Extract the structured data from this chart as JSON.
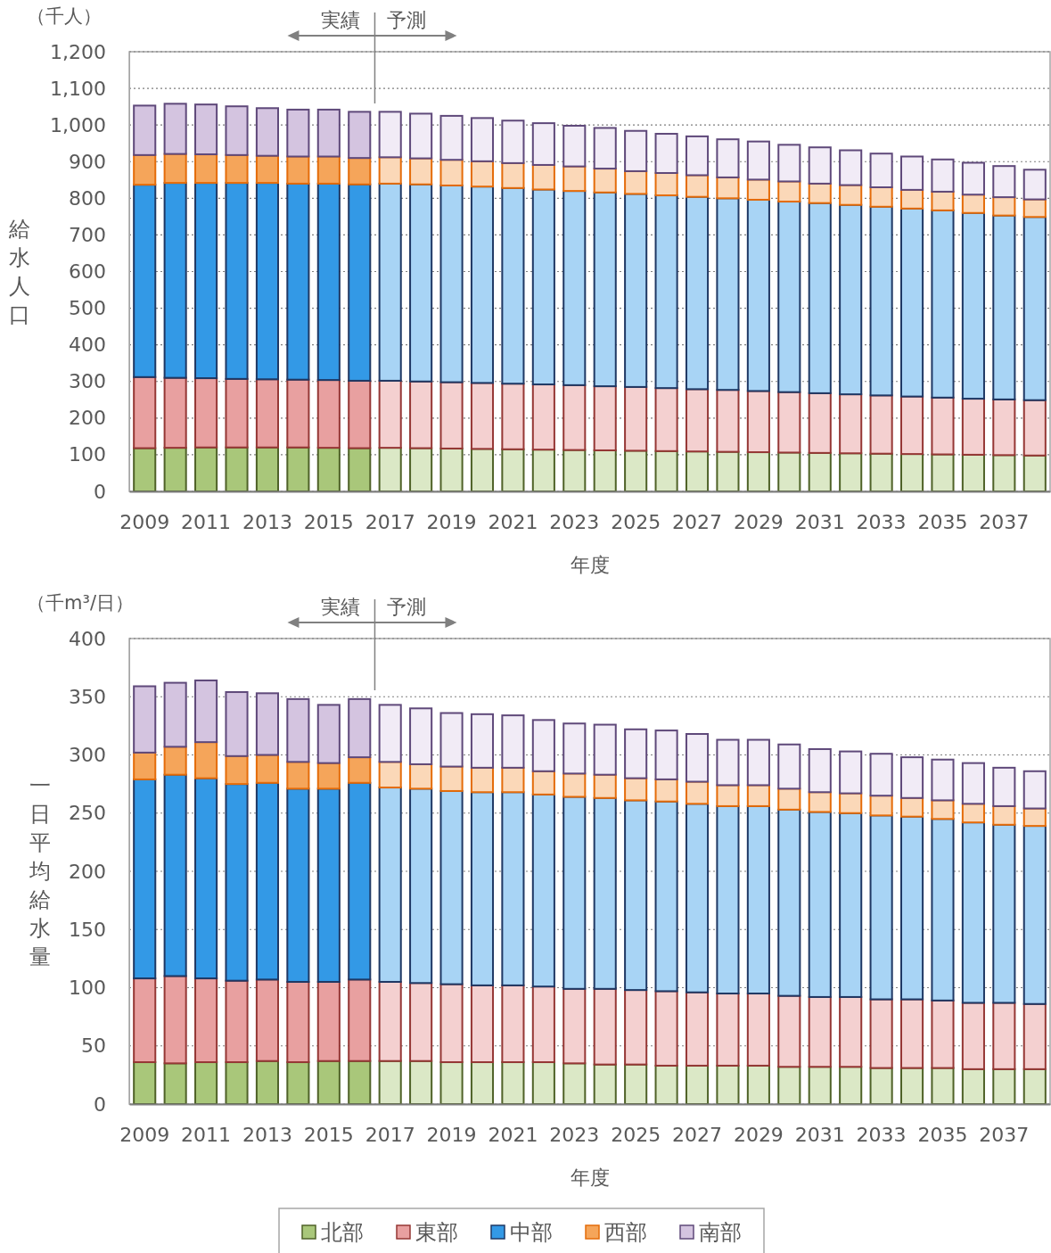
{
  "chart_data": [
    {
      "type": "bar",
      "stacked": true,
      "ylabel": "給水人口",
      "xlabel": "年度",
      "annotations": [
        "（千人）",
        "実績",
        "予測"
      ],
      "categories": [
        "2009",
        null,
        "2011",
        null,
        "2013",
        null,
        "2015",
        null,
        "2017",
        null,
        "2019",
        null,
        "2021",
        null,
        "2023",
        null,
        "2025",
        null,
        "2027",
        null,
        "2029",
        null,
        "2031",
        null,
        "2033",
        null,
        "2035",
        null,
        "2037",
        null
      ],
      "ylim": [
        0,
        1200
      ],
      "yticks": [
        0,
        100,
        200,
        300,
        400,
        500,
        600,
        700,
        800,
        900,
        {
          "value": 1000,
          "label": "1,000"
        },
        {
          "value": 1100,
          "label": "1,100"
        },
        {
          "value": 1200,
          "label": "1,200"
        }
      ],
      "grid": "y",
      "legend": false,
      "series": [
        {
          "color": "#4f6228",
          "colors": [
            "#a9c77a",
            "#a9c77a",
            "#a9c77a",
            "#a9c77a",
            "#a9c77a",
            "#a9c77a",
            "#a9c77a",
            "#a9c77a",
            "#dbe8c6",
            "#dbe8c6",
            "#dbe8c6",
            "#dbe8c6",
            "#dbe8c6",
            "#dbe8c6",
            "#dbe8c6",
            "#dbe8c6",
            "#dbe8c6",
            "#dbe8c6",
            "#dbe8c6",
            "#dbe8c6",
            "#dbe8c6",
            "#dbe8c6",
            "#dbe8c6",
            "#dbe8c6",
            "#dbe8c6",
            "#dbe8c6",
            "#dbe8c6",
            "#dbe8c6",
            "#dbe8c6",
            "#dbe8c6"
          ],
          "values": [
            118,
            119,
            120,
            120,
            120,
            120,
            119,
            118,
            119,
            118,
            117,
            116,
            115,
            114,
            113,
            112,
            111,
            110,
            109,
            108,
            107,
            106,
            105,
            104,
            103,
            102,
            101,
            100,
            99,
            98
          ]
        },
        {
          "color": "#953735",
          "colors": [
            "#e8a0a0",
            "#e8a0a0",
            "#e8a0a0",
            "#e8a0a0",
            "#e8a0a0",
            "#e8a0a0",
            "#e8a0a0",
            "#e8a0a0",
            "#f4d0d0",
            "#f4d0d0",
            "#f4d0d0",
            "#f4d0d0",
            "#f4d0d0",
            "#f4d0d0",
            "#f4d0d0",
            "#f4d0d0",
            "#f4d0d0",
            "#f4d0d0",
            "#f4d0d0",
            "#f4d0d0",
            "#f4d0d0",
            "#f4d0d0",
            "#f4d0d0",
            "#f4d0d0",
            "#f4d0d0",
            "#f4d0d0",
            "#f4d0d0",
            "#f4d0d0",
            "#f4d0d0",
            "#f4d0d0"
          ],
          "values": [
            194,
            191,
            189,
            187,
            186,
            185,
            185,
            184,
            183,
            182,
            181,
            180,
            179,
            178,
            177,
            175,
            174,
            172,
            170,
            169,
            167,
            165,
            163,
            161,
            159,
            157,
            155,
            153,
            152,
            151
          ]
        },
        {
          "color": "#1f3864",
          "colors": [
            "#3399e6",
            "#3399e6",
            "#3399e6",
            "#3399e6",
            "#3399e6",
            "#3399e6",
            "#3399e6",
            "#3399e6",
            "#a8d4f5",
            "#a8d4f5",
            "#a8d4f5",
            "#a8d4f5",
            "#a8d4f5",
            "#a8d4f5",
            "#a8d4f5",
            "#a8d4f5",
            "#a8d4f5",
            "#a8d4f5",
            "#a8d4f5",
            "#a8d4f5",
            "#a8d4f5",
            "#a8d4f5",
            "#a8d4f5",
            "#a8d4f5",
            "#a8d4f5",
            "#a8d4f5",
            "#a8d4f5",
            "#a8d4f5",
            "#a8d4f5",
            "#a8d4f5"
          ],
          "values": [
            525,
            532,
            533,
            535,
            536,
            535,
            536,
            536,
            538,
            538,
            537,
            536,
            534,
            532,
            530,
            529,
            527,
            526,
            525,
            523,
            522,
            520,
            519,
            517,
            515,
            513,
            511,
            507,
            502,
            500
          ]
        },
        {
          "color": "#e46c0a",
          "colors": [
            "#f5a55a",
            "#f5a55a",
            "#f5a55a",
            "#f5a55a",
            "#f5a55a",
            "#f5a55a",
            "#f5a55a",
            "#f5a55a",
            "#fbd8b8",
            "#fbd8b8",
            "#fbd8b8",
            "#fbd8b8",
            "#fbd8b8",
            "#fbd8b8",
            "#fbd8b8",
            "#fbd8b8",
            "#fbd8b8",
            "#fbd8b8",
            "#fbd8b8",
            "#fbd8b8",
            "#fbd8b8",
            "#fbd8b8",
            "#fbd8b8",
            "#fbd8b8",
            "#fbd8b8",
            "#fbd8b8",
            "#fbd8b8",
            "#fbd8b8",
            "#fbd8b8",
            "#fbd8b8"
          ],
          "values": [
            81,
            79,
            78,
            76,
            74,
            74,
            74,
            72,
            72,
            71,
            70,
            69,
            68,
            67,
            67,
            65,
            62,
            61,
            59,
            57,
            55,
            55,
            53,
            54,
            53,
            51,
            51,
            50,
            50,
            48
          ]
        },
        {
          "color": "#5f497a",
          "colors": [
            "#d4c4e0",
            "#d4c4e0",
            "#d4c4e0",
            "#d4c4e0",
            "#d4c4e0",
            "#d4c4e0",
            "#d4c4e0",
            "#d4c4e0",
            "#f1ebf6",
            "#f1ebf6",
            "#f1ebf6",
            "#f1ebf6",
            "#f1ebf6",
            "#f1ebf6",
            "#f1ebf6",
            "#f1ebf6",
            "#f1ebf6",
            "#f1ebf6",
            "#f1ebf6",
            "#f1ebf6",
            "#f1ebf6",
            "#f1ebf6",
            "#f1ebf6",
            "#f1ebf6",
            "#f1ebf6",
            "#f1ebf6",
            "#f1ebf6",
            "#f1ebf6",
            "#f1ebf6",
            "#f1ebf6"
          ],
          "values": [
            135,
            137,
            136,
            133,
            130,
            128,
            128,
            126,
            124,
            122,
            120,
            118,
            116,
            114,
            111,
            111,
            110,
            107,
            106,
            104,
            104,
            100,
            99,
            95,
            92,
            91,
            88,
            87,
            85,
            81
          ]
        }
      ]
    },
    {
      "type": "bar",
      "stacked": true,
      "ylabel": "一日平均給水量",
      "xlabel": "年度",
      "annotations": [
        "（千m³/日）",
        "実績",
        "予測"
      ],
      "categories": [
        "2009",
        null,
        "2011",
        null,
        "2013",
        null,
        "2015",
        null,
        "2017",
        null,
        "2019",
        null,
        "2021",
        null,
        "2023",
        null,
        "2025",
        null,
        "2027",
        null,
        "2029",
        null,
        "2031",
        null,
        "2033",
        null,
        "2035",
        null,
        "2037",
        null
      ],
      "ylim": [
        0,
        400
      ],
      "yticks": [
        0,
        50,
        100,
        150,
        200,
        250,
        300,
        350,
        400
      ],
      "grid": "y",
      "legend": "bottom",
      "series": [
        {
          "name": "北部",
          "color": "#4f6228",
          "colors": [
            "#a9c77a",
            "#a9c77a",
            "#a9c77a",
            "#a9c77a",
            "#a9c77a",
            "#a9c77a",
            "#a9c77a",
            "#a9c77a",
            "#dbe8c6",
            "#dbe8c6",
            "#dbe8c6",
            "#dbe8c6",
            "#dbe8c6",
            "#dbe8c6",
            "#dbe8c6",
            "#dbe8c6",
            "#dbe8c6",
            "#dbe8c6",
            "#dbe8c6",
            "#dbe8c6",
            "#dbe8c6",
            "#dbe8c6",
            "#dbe8c6",
            "#dbe8c6",
            "#dbe8c6",
            "#dbe8c6",
            "#dbe8c6",
            "#dbe8c6",
            "#dbe8c6",
            "#dbe8c6"
          ],
          "values": [
            36,
            35,
            36,
            36,
            37,
            36,
            37,
            37,
            37,
            37,
            36,
            36,
            36,
            36,
            35,
            34,
            34,
            33,
            33,
            33,
            33,
            32,
            32,
            32,
            31,
            31,
            31,
            30,
            30,
            30
          ]
        },
        {
          "name": "東部",
          "color": "#953735",
          "colors": [
            "#e8a0a0",
            "#e8a0a0",
            "#e8a0a0",
            "#e8a0a0",
            "#e8a0a0",
            "#e8a0a0",
            "#e8a0a0",
            "#e8a0a0",
            "#f4d0d0",
            "#f4d0d0",
            "#f4d0d0",
            "#f4d0d0",
            "#f4d0d0",
            "#f4d0d0",
            "#f4d0d0",
            "#f4d0d0",
            "#f4d0d0",
            "#f4d0d0",
            "#f4d0d0",
            "#f4d0d0",
            "#f4d0d0",
            "#f4d0d0",
            "#f4d0d0",
            "#f4d0d0",
            "#f4d0d0",
            "#f4d0d0",
            "#f4d0d0",
            "#f4d0d0",
            "#f4d0d0",
            "#f4d0d0"
          ],
          "values": [
            72,
            75,
            72,
            70,
            70,
            69,
            68,
            70,
            68,
            67,
            67,
            66,
            66,
            65,
            64,
            65,
            64,
            64,
            63,
            62,
            62,
            61,
            60,
            60,
            59,
            59,
            58,
            57,
            57,
            56
          ]
        },
        {
          "name": "中部",
          "color": "#1f3864",
          "colors": [
            "#3399e6",
            "#3399e6",
            "#3399e6",
            "#3399e6",
            "#3399e6",
            "#3399e6",
            "#3399e6",
            "#3399e6",
            "#a8d4f5",
            "#a8d4f5",
            "#a8d4f5",
            "#a8d4f5",
            "#a8d4f5",
            "#a8d4f5",
            "#a8d4f5",
            "#a8d4f5",
            "#a8d4f5",
            "#a8d4f5",
            "#a8d4f5",
            "#a8d4f5",
            "#a8d4f5",
            "#a8d4f5",
            "#a8d4f5",
            "#a8d4f5",
            "#a8d4f5",
            "#a8d4f5",
            "#a8d4f5",
            "#a8d4f5",
            "#a8d4f5",
            "#a8d4f5"
          ],
          "values": [
            171,
            173,
            172,
            169,
            169,
            166,
            166,
            169,
            167,
            167,
            166,
            166,
            166,
            165,
            165,
            164,
            163,
            163,
            162,
            161,
            161,
            160,
            159,
            158,
            158,
            157,
            156,
            155,
            153,
            153
          ]
        },
        {
          "name": "西部",
          "color": "#e46c0a",
          "colors": [
            "#f5a55a",
            "#f5a55a",
            "#f5a55a",
            "#f5a55a",
            "#f5a55a",
            "#f5a55a",
            "#f5a55a",
            "#f5a55a",
            "#fbd8b8",
            "#fbd8b8",
            "#fbd8b8",
            "#fbd8b8",
            "#fbd8b8",
            "#fbd8b8",
            "#fbd8b8",
            "#fbd8b8",
            "#fbd8b8",
            "#fbd8b8",
            "#fbd8b8",
            "#fbd8b8",
            "#fbd8b8",
            "#fbd8b8",
            "#fbd8b8",
            "#fbd8b8",
            "#fbd8b8",
            "#fbd8b8",
            "#fbd8b8",
            "#fbd8b8",
            "#fbd8b8",
            "#fbd8b8"
          ],
          "values": [
            23,
            24,
            31,
            24,
            24,
            23,
            22,
            22,
            22,
            21,
            21,
            21,
            21,
            20,
            20,
            20,
            19,
            19,
            19,
            18,
            18,
            18,
            17,
            17,
            17,
            16,
            16,
            16,
            16,
            15
          ]
        },
        {
          "name": "南部",
          "color": "#5f497a",
          "colors": [
            "#d4c4e0",
            "#d4c4e0",
            "#d4c4e0",
            "#d4c4e0",
            "#d4c4e0",
            "#d4c4e0",
            "#d4c4e0",
            "#d4c4e0",
            "#f1ebf6",
            "#f1ebf6",
            "#f1ebf6",
            "#f1ebf6",
            "#f1ebf6",
            "#f1ebf6",
            "#f1ebf6",
            "#f1ebf6",
            "#f1ebf6",
            "#f1ebf6",
            "#f1ebf6",
            "#f1ebf6",
            "#f1ebf6",
            "#f1ebf6",
            "#f1ebf6",
            "#f1ebf6",
            "#f1ebf6",
            "#f1ebf6",
            "#f1ebf6",
            "#f1ebf6",
            "#f1ebf6",
            "#f1ebf6"
          ],
          "values": [
            57,
            55,
            53,
            55,
            53,
            54,
            50,
            50,
            49,
            48,
            46,
            46,
            45,
            44,
            43,
            43,
            42,
            42,
            41,
            39,
            39,
            38,
            37,
            36,
            36,
            35,
            35,
            35,
            33,
            32
          ]
        }
      ]
    }
  ]
}
